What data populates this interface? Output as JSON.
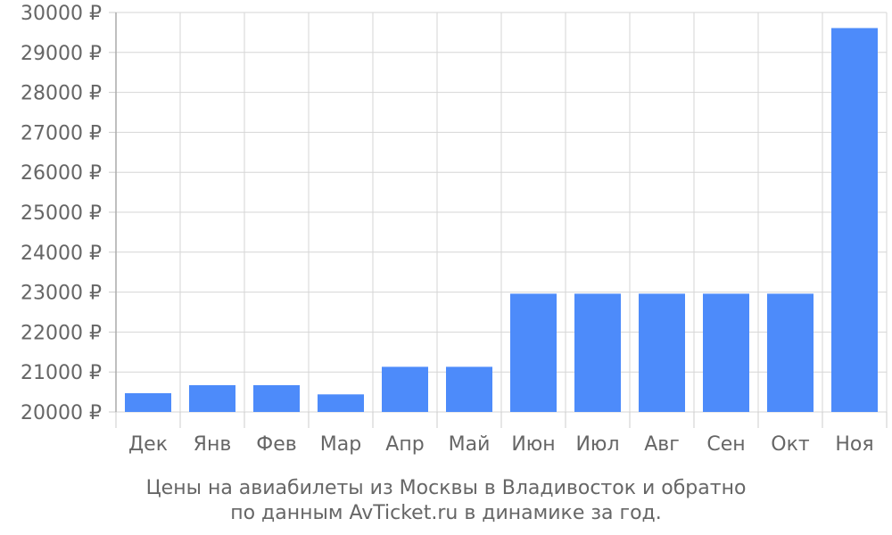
{
  "chart_data": {
    "type": "bar",
    "categories": [
      "Дек",
      "Янв",
      "Фев",
      "Мар",
      "Апр",
      "Май",
      "Июн",
      "Июл",
      "Авг",
      "Сен",
      "Окт",
      "Ноя"
    ],
    "values": [
      20470,
      20670,
      20670,
      20440,
      21130,
      21130,
      22960,
      22960,
      22960,
      22960,
      22960,
      29610
    ],
    "ylim": [
      20000,
      30000
    ],
    "yticks": [
      20000,
      21000,
      22000,
      23000,
      24000,
      25000,
      26000,
      27000,
      28000,
      29000,
      30000
    ],
    "y_tick_suffix": " ₽",
    "grid": true,
    "bar_color": "#4d8bfa",
    "caption_line1": "Цены на авиабилеты из Москвы в Владивосток и обратно",
    "caption_line2": "по данным AvTicket.ru в динамике за год."
  }
}
